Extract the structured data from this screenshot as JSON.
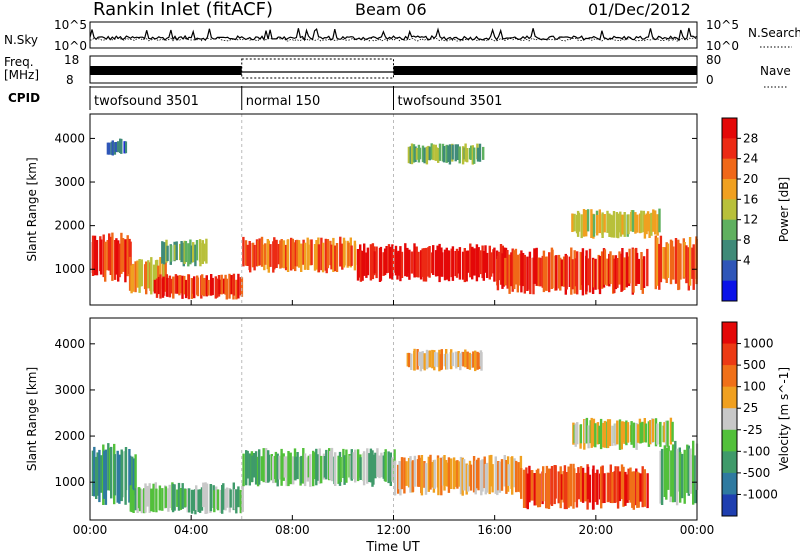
{
  "header": {
    "station": "Rankin Inlet (fitACF)",
    "beam": "Beam 06",
    "date": "01/Dec/2012"
  },
  "noise_panel": {
    "left_label": "N.Sky",
    "right_label": "N.Search",
    "left_ticks": [
      "10^5",
      "10^0"
    ],
    "right_ticks": [
      "10^5",
      "10^0"
    ]
  },
  "freq_panel": {
    "left_label_1": "Freq.",
    "left_label_2": "[MHz]",
    "right_label": "Nave",
    "left_ticks": [
      "18",
      "8"
    ],
    "right_ticks": [
      "80",
      "0"
    ]
  },
  "cpid_panel": {
    "label": "CPID",
    "segments": [
      {
        "name": "twofsound 3501",
        "start_hour": 0,
        "end_hour": 6
      },
      {
        "name": "normal 150",
        "start_hour": 6,
        "end_hour": 12
      },
      {
        "name": "twofsound 3501",
        "start_hour": 12,
        "end_hour": 24
      }
    ]
  },
  "chart_data": [
    {
      "type": "heatmap",
      "ylabel": "Slant Range [km]",
      "ylim": [
        180,
        4560
      ],
      "yticks": [
        "1000",
        "2000",
        "3000",
        "4000"
      ],
      "xlim_hours": [
        0,
        24
      ],
      "xticks": [
        "00:00",
        "04:00",
        "08:00",
        "12:00",
        "16:00",
        "20:00",
        "00:00"
      ],
      "colorbar": {
        "label": "Power [dB]",
        "ticks": [
          "28",
          "24",
          "20",
          "16",
          "12",
          "8",
          "4"
        ],
        "colors": [
          "#0a12e8",
          "#2f56b8",
          "#3f8a78",
          "#5fb05f",
          "#b8c03a",
          "#f0a020",
          "#f06818",
          "#ec2a14",
          "#e40808"
        ]
      },
      "vertical_markers_hours": [
        6,
        12
      ],
      "echo_regions": [
        {
          "t0": 0,
          "t1": 1.6,
          "r0": 700,
          "r1": 1850,
          "level": 7
        },
        {
          "t0": 1.5,
          "t1": 3,
          "r0": 400,
          "r1": 1300,
          "level": 5
        },
        {
          "t0": 2.5,
          "t1": 6,
          "r0": 300,
          "r1": 900,
          "level": 7
        },
        {
          "t0": 2.8,
          "t1": 4.6,
          "r0": 1050,
          "r1": 1700,
          "level": 3
        },
        {
          "t0": 6,
          "t1": 10.5,
          "r0": 900,
          "r1": 1750,
          "level": 6
        },
        {
          "t0": 10.5,
          "t1": 16.5,
          "r0": 700,
          "r1": 1600,
          "level": 8
        },
        {
          "t0": 16,
          "t1": 22,
          "r0": 400,
          "r1": 1500,
          "level": 7
        },
        {
          "t0": 19,
          "t1": 22.5,
          "r0": 1700,
          "r1": 2400,
          "level": 4
        },
        {
          "t0": 22.3,
          "t1": 24,
          "r0": 500,
          "r1": 1800,
          "level": 6
        },
        {
          "t0": 12.5,
          "t1": 15.5,
          "r0": 3400,
          "r1": 3900,
          "level": 3
        },
        {
          "t0": 0.6,
          "t1": 1.4,
          "r0": 3600,
          "r1": 4000,
          "level": 1
        }
      ]
    },
    {
      "type": "heatmap",
      "ylabel": "Slant Range [km]",
      "ylim": [
        180,
        4560
      ],
      "yticks": [
        "1000",
        "2000",
        "3000",
        "4000"
      ],
      "xlim_hours": [
        0,
        24
      ],
      "xticks": [
        "00:00",
        "04:00",
        "08:00",
        "12:00",
        "16:00",
        "20:00",
        "00:00"
      ],
      "xlabel": "Time UT",
      "colorbar": {
        "label": "Velocity [m s^-1]",
        "ticks": [
          "1000",
          "500",
          "100",
          "25",
          "-25",
          "-100",
          "-500",
          "-1000"
        ],
        "colors": [
          "#1f3fb0",
          "#2f7aa0",
          "#3f9a6a",
          "#52c03a",
          "#c8c8c8",
          "#f0a020",
          "#f07018",
          "#ec3a14",
          "#e40808"
        ]
      },
      "vertical_markers_hours": [
        6,
        12
      ],
      "echo_regions": [
        {
          "t0": 0,
          "t1": 1.8,
          "r0": 500,
          "r1": 1850,
          "level": 2
        },
        {
          "t0": 1.5,
          "t1": 6,
          "r0": 300,
          "r1": 1000,
          "level": 3
        },
        {
          "t0": 6,
          "t1": 12,
          "r0": 900,
          "r1": 1750,
          "level": 3
        },
        {
          "t0": 12,
          "t1": 17,
          "r0": 700,
          "r1": 1600,
          "level": 5
        },
        {
          "t0": 17,
          "t1": 22,
          "r0": 400,
          "r1": 1400,
          "level": 7
        },
        {
          "t0": 19,
          "t1": 23,
          "r0": 1700,
          "r1": 2400,
          "level": 4
        },
        {
          "t0": 22.5,
          "t1": 24,
          "r0": 500,
          "r1": 1900,
          "level": 3
        },
        {
          "t0": 12.5,
          "t1": 15.5,
          "r0": 3400,
          "r1": 3900,
          "level": 5
        }
      ]
    }
  ]
}
